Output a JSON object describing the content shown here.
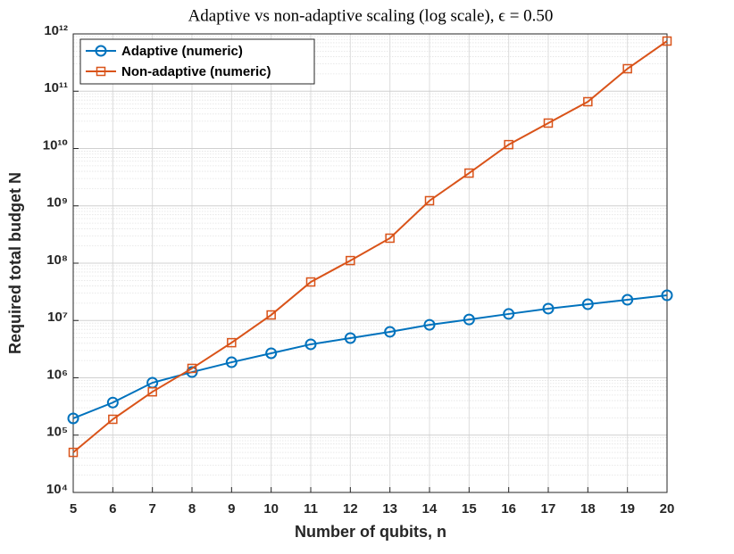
{
  "chart_data": {
    "type": "line",
    "title": "Adaptive vs non-adaptive scaling (log scale), ϵ = 0.50",
    "x_label": "Number of qubits, n",
    "y_label": "Required total budget N",
    "x": [
      5,
      6,
      7,
      8,
      9,
      10,
      11,
      12,
      13,
      14,
      15,
      16,
      17,
      18,
      19,
      20
    ],
    "series": [
      {
        "name": "Adaptive (numeric)",
        "color": "#0072BD",
        "marker": "circle",
        "values": [
          196000,
          370000,
          820000,
          1260000,
          1870000,
          2680000,
          3840000,
          4930000,
          6340000,
          8400000,
          10400000,
          13000000,
          16100000,
          19200000,
          23000000,
          27500000
        ]
      },
      {
        "name": "Non-adaptive (numeric)",
        "color": "#D95319",
        "marker": "square",
        "values": [
          50000,
          189000,
          570000,
          1460000,
          4100000,
          12500000,
          47000000,
          111000000,
          273000000,
          1230000000,
          3730000000,
          11700000000,
          27800000000,
          65600000000,
          247000000000,
          750000000000
        ]
      }
    ],
    "xlim": [
      5,
      20
    ],
    "xticks": [
      5,
      6,
      7,
      8,
      9,
      10,
      11,
      12,
      13,
      14,
      15,
      16,
      17,
      18,
      19,
      20
    ],
    "ylim": [
      10000,
      1000000000000
    ],
    "yticks": [
      {
        "value": 10000,
        "label": "10⁴"
      },
      {
        "value": 100000,
        "label": "10⁵"
      },
      {
        "value": 1000000,
        "label": "10⁶"
      },
      {
        "value": 10000000,
        "label": "10⁷"
      },
      {
        "value": 100000000,
        "label": "10⁸"
      },
      {
        "value": 1000000000,
        "label": "10⁹"
      },
      {
        "value": 10000000000,
        "label": "10¹⁰"
      },
      {
        "value": 100000000000,
        "label": "10¹¹"
      },
      {
        "value": 1000000000000,
        "label": "10¹²"
      }
    ],
    "y_scale": "log",
    "grid": true,
    "minor_grid": true,
    "legend": "upper-left"
  }
}
